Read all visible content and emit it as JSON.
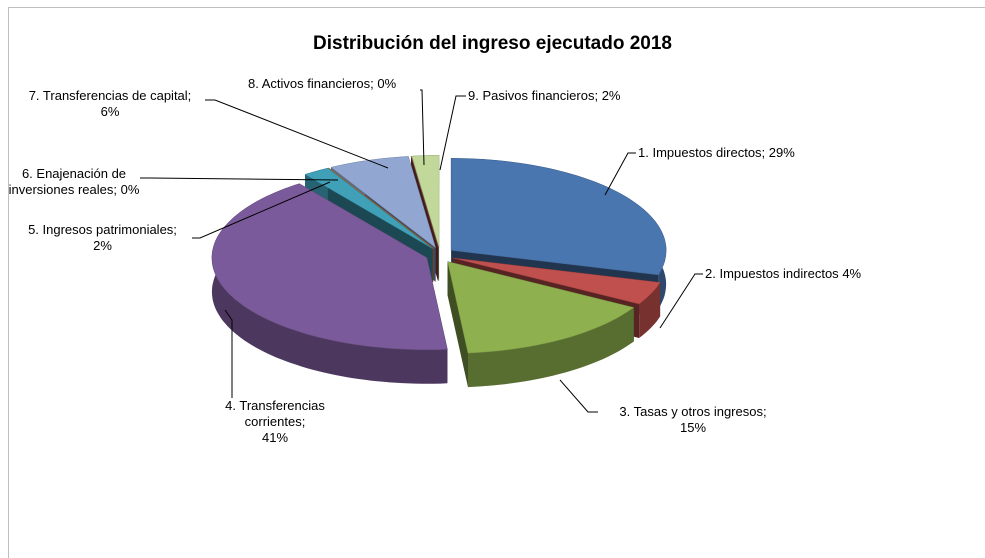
{
  "chart_data": {
    "type": "pie",
    "title": "Distribución del ingreso ejecutado 2018",
    "categories": [
      "1. Impuestos directos;",
      "2. Impuestos indirectos",
      "3. Tasas y otros ingresos;",
      "4. Transferencias corrientes;",
      "5. Ingresos patrimoniales;",
      "6. Enajenación de inversiones reales;",
      "7. Transferencias de capital;",
      "8. Activos financieros;",
      "9. Pasivos financieros;"
    ],
    "values": [
      29,
      4,
      15,
      41,
      2,
      0,
      6,
      0,
      2
    ],
    "value_labels": [
      "29%",
      "4%",
      "15%",
      "41%",
      "2%",
      "0%",
      "6%",
      "0%",
      "2%"
    ],
    "colors": [
      "#4a76b0",
      "#c0504d",
      "#8eb04e",
      "#7a5a9a",
      "#3fa0b8",
      "#f08a30",
      "#91a7d2",
      "#8c3b3b",
      "#c2d89a"
    ]
  }
}
